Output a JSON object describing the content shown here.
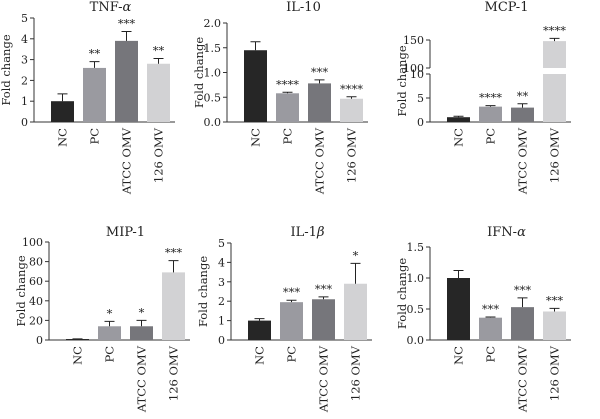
{
  "colors": {
    "NC": "#262626",
    "PC": "#9a9aa0",
    "ATCC OMV": "#76767b",
    "126 OMV": "#d2d2d4"
  },
  "chart_data": [
    {
      "type": "bar",
      "title": "TNF-α",
      "title_base": "TNF-",
      "title_greek": "α",
      "ylabel": "Fold change",
      "categories": [
        "NC",
        "PC",
        "ATCC OMV",
        "126 OMV"
      ],
      "values": [
        1.0,
        2.6,
        3.9,
        2.8
      ],
      "errors": [
        0.35,
        0.3,
        0.45,
        0.25
      ],
      "significance": [
        "",
        "**",
        "***",
        "**"
      ],
      "ylim": [
        0,
        5
      ],
      "yticks": [
        0,
        1,
        2,
        3,
        4,
        5
      ],
      "ytick_labels": [
        "0",
        "1",
        "2",
        "3",
        "4",
        "5"
      ]
    },
    {
      "type": "bar",
      "title": "IL-10",
      "ylabel": "Fold change",
      "categories": [
        "NC",
        "PC",
        "ATCC OMV",
        "126 OMV"
      ],
      "values": [
        1.45,
        0.58,
        0.78,
        0.47
      ],
      "errors": [
        0.17,
        0.02,
        0.07,
        0.04
      ],
      "significance": [
        "",
        "****",
        "***",
        "****"
      ],
      "ylim": [
        0,
        2.0
      ],
      "yticks": [
        0,
        0.5,
        1.0,
        1.5,
        2.0
      ],
      "ytick_labels": [
        "0.0",
        "0.5",
        "1.0",
        "1.5",
        "2.0"
      ]
    },
    {
      "type": "bar",
      "title": "MCP-1",
      "ylabel": "Fold change",
      "categories": [
        "NC",
        "PC",
        "ATCC OMV",
        "126 OMV"
      ],
      "values": [
        1.0,
        3.2,
        3.0,
        148
      ],
      "errors": [
        0.2,
        0.2,
        0.8,
        5
      ],
      "significance": [
        "",
        "****",
        "**",
        "****"
      ],
      "y_axis_break": [
        10,
        100
      ],
      "lower_ylim": [
        0,
        10
      ],
      "lower_yticks": [
        0,
        5,
        10
      ],
      "upper_ylim": [
        100,
        150
      ],
      "upper_yticks": [
        100,
        150
      ],
      "ytick_labels": [
        "0",
        "5",
        "10",
        "100",
        "150"
      ]
    },
    {
      "type": "bar",
      "title": "MIP-1",
      "ylabel": "Fold change",
      "categories": [
        "NC",
        "PC",
        "ATCC OMV",
        "126 OMV"
      ],
      "values": [
        1.0,
        14,
        14,
        69
      ],
      "errors": [
        0.2,
        5,
        6,
        12
      ],
      "significance": [
        "",
        "*",
        "*",
        "***"
      ],
      "ylim": [
        0,
        100
      ],
      "yticks": [
        0,
        20,
        40,
        60,
        80,
        100
      ],
      "ytick_labels": [
        "0",
        "20",
        "40",
        "60",
        "80",
        "100"
      ]
    },
    {
      "type": "bar",
      "title": "IL-1β",
      "title_base": "IL-1",
      "title_greek": "β",
      "ylabel": "Fold change",
      "categories": [
        "NC",
        "PC",
        "ATCC OMV",
        "126 OMV"
      ],
      "values": [
        1.0,
        1.95,
        2.1,
        2.9
      ],
      "errors": [
        0.1,
        0.1,
        0.12,
        1.05
      ],
      "significance": [
        "",
        "***",
        "***",
        "*"
      ],
      "ylim": [
        0,
        5
      ],
      "yticks": [
        0,
        1,
        2,
        3,
        4,
        5
      ],
      "ytick_labels": [
        "0",
        "1",
        "2",
        "3",
        "4",
        "5"
      ]
    },
    {
      "type": "bar",
      "title": "IFN-α",
      "title_base": "IFN-",
      "title_greek": "α",
      "ylabel": "Fold change",
      "categories": [
        "NC",
        "PC",
        "ATCC OMV",
        "126 OMV"
      ],
      "values": [
        1.0,
        0.36,
        0.53,
        0.46
      ],
      "errors": [
        0.12,
        0.01,
        0.15,
        0.05
      ],
      "significance": [
        "",
        "***",
        "***",
        "***"
      ],
      "ylim": [
        0,
        1.5
      ],
      "yticks": [
        0,
        0.5,
        1.0,
        1.5
      ],
      "ytick_labels": [
        "0.0",
        "0.5",
        "1.0",
        "1.5"
      ]
    }
  ]
}
